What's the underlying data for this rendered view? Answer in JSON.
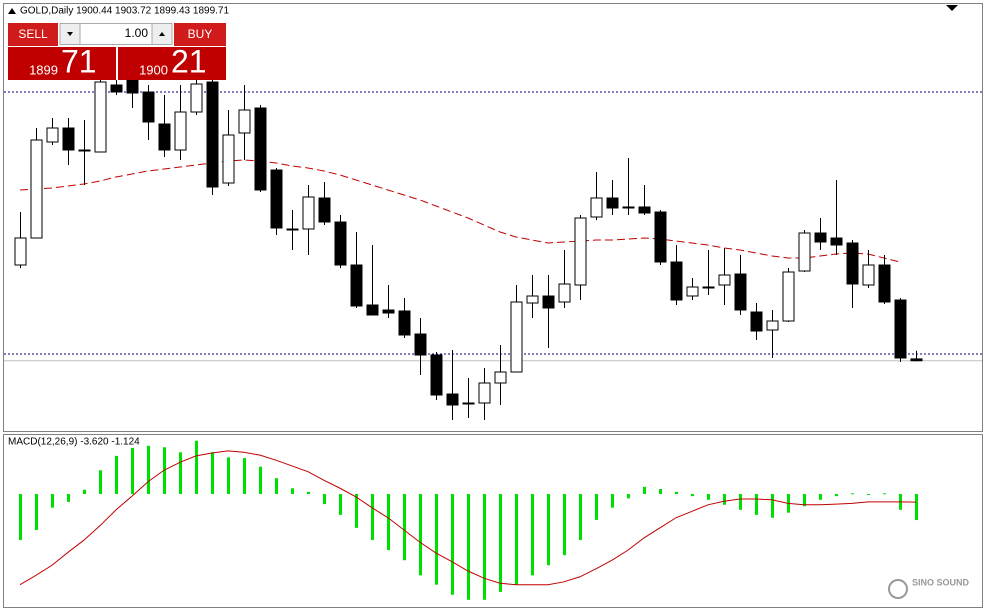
{
  "header": {
    "title": "GOLD,Daily  1900.44 1903.72 1899.43 1899.71"
  },
  "trade_panel": {
    "sell": "SELL",
    "buy": "BUY",
    "volume": "1.00",
    "bid_big": "1899",
    "bid_small": "71",
    "ask_big": "1900",
    "ask_small": "21"
  },
  "watermark": "SINO SOUND",
  "chart_data": [
    {
      "type": "candlestick",
      "ylim": [
        1872,
        2042
      ],
      "up_color": "#ffffff",
      "down_color": "#000000",
      "open": [
        1938,
        1948.8,
        1987.2,
        1992.8,
        1984,
        1983.2,
        2010,
        2012,
        2007.2,
        1994.4,
        1984,
        1999.2,
        2011.2,
        1970.8,
        1990.8,
        2000.8,
        1976,
        1952.4,
        1952.4,
        1964.8,
        1955.2,
        1938,
        1922,
        1920,
        1919.6,
        1910.4,
        1902,
        1886.4,
        1882.4,
        1882.8,
        1890.8,
        1895.2,
        1922.8,
        1925.6,
        1923.2,
        1930,
        1957.2,
        1964.8,
        1961.2,
        1961.2,
        1959.2,
        1939.2,
        1925.6,
        1929.2,
        1930,
        1934.4,
        1919.2,
        1912,
        1915.6,
        1935.6,
        1950.8,
        1948.8,
        1946.8,
        1930,
        1938,
        1924,
        1900.44
      ],
      "high": [
        1959.2,
        1992.8,
        1996.8,
        1996.8,
        1996,
        2012,
        2012,
        2012,
        2010,
        2006,
        2010,
        2012,
        2012,
        2000,
        2010,
        2002,
        1976.8,
        1960,
        1970,
        1971.2,
        1958,
        1951.2,
        1946,
        1930,
        1924.8,
        1916.8,
        1903.2,
        1904,
        1892.8,
        1896.8,
        1906,
        1930,
        1934,
        1934,
        1944,
        1958,
        1975.2,
        1972,
        1980.8,
        1970,
        1960,
        1946,
        1932.8,
        1944,
        1944.8,
        1942,
        1922.8,
        1920,
        1936.8,
        1952,
        1956.8,
        1972,
        1948,
        1944,
        1942,
        1924.8,
        1903.72
      ],
      "low": [
        1936.8,
        1948.8,
        1986,
        1978,
        1970,
        1983.2,
        2006,
        2000.8,
        1988,
        1981.2,
        1980,
        1998,
        1966,
        1969.6,
        1980,
        1967.2,
        1950,
        1944,
        1942,
        1954,
        1936.8,
        1920.8,
        1918,
        1916.8,
        1908.8,
        1894,
        1884,
        1876,
        1876.8,
        1876,
        1882,
        1895.2,
        1916.8,
        1904.8,
        1920.8,
        1924,
        1956,
        1958,
        1958,
        1958,
        1938,
        1922,
        1924,
        1926,
        1922,
        1918,
        1908,
        1900.8,
        1915.2,
        1935.2,
        1944,
        1942,
        1920.8,
        1928.8,
        1922.4,
        1899.2,
        1899.43
      ],
      "close": [
        1948.8,
        1988,
        1992.8,
        1984,
        1983.6,
        2011.2,
        2007.2,
        2006.8,
        1995.2,
        1984,
        1999.2,
        2010.4,
        1969.2,
        1990,
        2000,
        1968,
        1952.8,
        1952,
        1965.2,
        1955.2,
        1938,
        1921.6,
        1918,
        1918.8,
        1910,
        1902,
        1886,
        1882,
        1882.8,
        1890.8,
        1895.2,
        1923.2,
        1925.6,
        1920.8,
        1930.4,
        1956.8,
        1964.8,
        1960.8,
        1960.8,
        1958.8,
        1939.2,
        1924,
        1929.2,
        1928.8,
        1934,
        1920,
        1911.6,
        1915.6,
        1935.2,
        1950.8,
        1947.2,
        1946,
        1930.4,
        1938,
        1923.2,
        1900.8,
        1899.71
      ],
      "ma": {
        "color": "#c00000",
        "values": [
          1968,
          1968.4,
          1968.8,
          1969.6,
          1970.4,
          1971.6,
          1973.2,
          1974.4,
          1975.6,
          1976.4,
          1977.2,
          1978,
          1978.8,
          1979.6,
          1980,
          1979.6,
          1978.8,
          1977.6,
          1976.8,
          1975.6,
          1974,
          1972,
          1970,
          1968,
          1966,
          1964,
          1961.6,
          1959.2,
          1956.8,
          1954,
          1951.2,
          1949.2,
          1948,
          1946.8,
          1947.2,
          1947.6,
          1948,
          1948,
          1948.4,
          1948.8,
          1948.4,
          1947.6,
          1946.8,
          1946,
          1944.8,
          1944,
          1942.8,
          1941.6,
          1940.8,
          1940.8,
          1941.6,
          1942.4,
          1942.8,
          1942.4,
          1940.8,
          1939.2,
          null
        ]
      },
      "price_lines": [
        {
          "value": 2007.2,
          "color": "#000080"
        },
        {
          "value": 1902.4,
          "color": "#000080"
        }
      ],
      "bid_line": {
        "value": 1899.71,
        "color": "#c0c0c0"
      }
    },
    {
      "type": "macd",
      "label": "MACD(12,26,9) -3.620 -1.124",
      "ylim": [
        -15.7,
        8.2
      ],
      "histogram": {
        "color": "#00e000",
        "values": [
          -6.4,
          -5.0,
          -1.9,
          -1.1,
          0.6,
          3.3,
          5.3,
          6.4,
          6.7,
          6.5,
          5.8,
          7.4,
          5.8,
          5.1,
          5.0,
          3.8,
          2.2,
          0.8,
          0.3,
          -1.4,
          -2.9,
          -4.7,
          -6.4,
          -7.8,
          -9.2,
          -11.3,
          -12.6,
          -14.0,
          -14.7,
          -14.7,
          -13.6,
          -12.6,
          -11.3,
          -9.9,
          -8.5,
          -6.4,
          -3.6,
          -1.9,
          -0.6,
          1.0,
          0.7,
          0.3,
          -0.3,
          -0.8,
          -1.5,
          -2.2,
          -2.9,
          -3.3,
          -2.6,
          -1.7,
          -0.8,
          -0.3,
          0.1,
          -0.1,
          0.1,
          -2.2,
          -3.62
        ]
      },
      "signal": {
        "color": "#c00000",
        "values": [
          -12.6,
          -11.3,
          -9.9,
          -8.1,
          -6.4,
          -4.4,
          -2.2,
          -0.3,
          1.7,
          3.3,
          4.4,
          5.3,
          5.7,
          6.0,
          5.8,
          5.4,
          4.7,
          3.9,
          3.1,
          1.9,
          0.8,
          -0.4,
          -1.9,
          -3.3,
          -5.0,
          -6.7,
          -8.2,
          -9.4,
          -10.7,
          -11.7,
          -12.4,
          -12.6,
          -12.6,
          -12.6,
          -12.2,
          -11.5,
          -10.4,
          -9.2,
          -7.8,
          -6.1,
          -4.7,
          -3.3,
          -2.4,
          -1.5,
          -1.0,
          -0.7,
          -0.7,
          -0.8,
          -1.3,
          -1.5,
          -1.5,
          -1.4,
          -1.3,
          -1.1,
          -1.1,
          -1.1,
          -1.124
        ]
      }
    }
  ]
}
